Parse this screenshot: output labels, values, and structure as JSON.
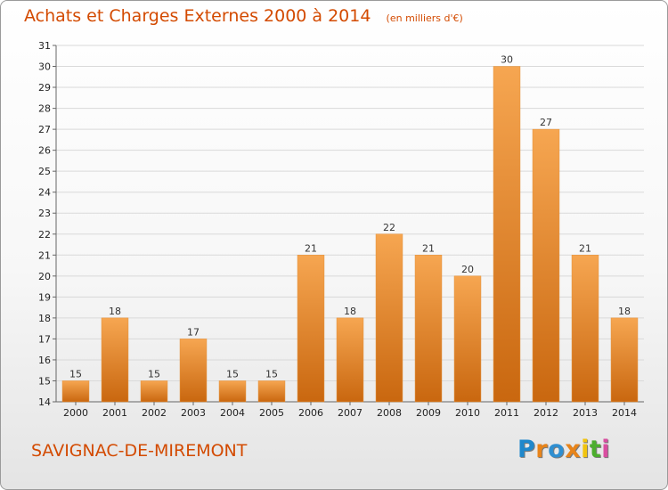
{
  "header": {
    "title": "Achats et Charges Externes 2000 à 2014",
    "unit": "(en milliers d'€)"
  },
  "footer": {
    "commune": "SAVIGNAC-DE-MIREMONT",
    "logo_letters": [
      "P",
      "r",
      "o",
      "x",
      "i",
      "t",
      "i"
    ]
  },
  "colors": {
    "accent": "#d34a00",
    "bar_top": "#f6a651",
    "bar_bottom": "#c9670f",
    "grid": "#d9d9d9",
    "logo": [
      "#1f88cc",
      "#e8841a",
      "#2f8fd1",
      "#e8841a",
      "#f1c40f",
      "#4cae2e",
      "#d94da0"
    ]
  },
  "chart_data": {
    "type": "bar",
    "title": "Achats et Charges Externes 2000 à 2014",
    "subtitle": "(en milliers d'€)",
    "xlabel": "",
    "ylabel": "",
    "categories": [
      "2000",
      "2001",
      "2002",
      "2003",
      "2004",
      "2005",
      "2006",
      "2007",
      "2008",
      "2009",
      "2010",
      "2011",
      "2012",
      "2013",
      "2014"
    ],
    "values": [
      15,
      18,
      15,
      17,
      15,
      15,
      21,
      18,
      22,
      21,
      20,
      30,
      27,
      21,
      18
    ],
    "yticks": [
      "14",
      "15",
      "16",
      "17",
      "18",
      "19",
      "20",
      "21",
      "22",
      "23",
      "24",
      "25",
      "26",
      "27",
      "28",
      "29",
      "30",
      "31"
    ],
    "ylim": [
      14,
      31
    ],
    "grid": true,
    "legend": "none"
  }
}
